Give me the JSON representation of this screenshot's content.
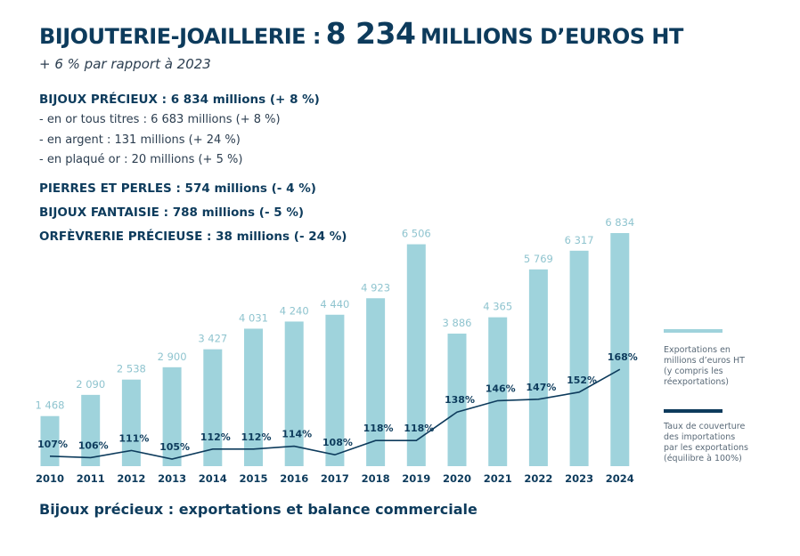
{
  "header": {
    "label": "BIJOUTERIE-JOAILLERIE :",
    "amount": "8 234",
    "unit": "MILLIONS D’EUROS HT",
    "subtitle": "+ 6 % par rapport à 2023"
  },
  "breakdown": {
    "precious": "BIJOUX PRÉCIEUX : 6 834 millions (+ 8 %)",
    "gold": "- en or tous titres : 6 683 millions (+ 8 %)",
    "silver": "- en argent : 131 millions (+ 24 %)",
    "plated": "- en plaqué or : 20 millions (+ 5 %)",
    "stones": "PIERRES ET PERLES : 574 millions (- 4 %)",
    "fantasy": "BIJOUX FANTAISIE : 788 millions (- 5 %)",
    "silverware": "ORFÈVRERIE PRÉCIEUSE : 38 millions (- 24 %)"
  },
  "colors": {
    "bar": "#9fd3dc",
    "line": "#0d3b5c",
    "bar_label": "#8fc4cf"
  },
  "chart_data": {
    "type": "bar",
    "title": "Bijoux précieux : exportations et balance commerciale",
    "categories": [
      "2010",
      "2011",
      "2012",
      "2013",
      "2014",
      "2015",
      "2016",
      "2017",
      "2018",
      "2019",
      "2020",
      "2021",
      "2022",
      "2023",
      "2024"
    ],
    "series": [
      {
        "name": "Exportations en millions d’euros HT (y compris les réexportations)",
        "type": "bar",
        "values": [
          1468,
          2090,
          2538,
          2900,
          3427,
          4031,
          4240,
          4440,
          4923,
          6506,
          3886,
          4365,
          5769,
          6317,
          6834
        ],
        "labels": [
          "1 468",
          "2 090",
          "2 538",
          "2 900",
          "3 427",
          "4 031",
          "4 240",
          "4 440",
          "4 923",
          "6 506",
          "3 886",
          "4 365",
          "5 769",
          "6 317",
          "6 834"
        ]
      },
      {
        "name": "Taux de couverture des importations par les exportations (équilibre à 100%)",
        "type": "line",
        "values": [
          107,
          106,
          111,
          105,
          112,
          112,
          114,
          108,
          118,
          118,
          138,
          146,
          147,
          152,
          168
        ],
        "labels": [
          "107%",
          "106%",
          "111%",
          "105%",
          "112%",
          "112%",
          "114%",
          "108%",
          "118%",
          "118%",
          "138%",
          "146%",
          "147%",
          "152%",
          "168%"
        ]
      }
    ],
    "ylim": [
      0,
      7000
    ],
    "legend_position": "right"
  },
  "legend": {
    "exports_line1": "Exportations en",
    "exports_line2": "millions d’euros HT",
    "exports_line3": "(y compris les",
    "exports_line4": "réexportations)",
    "coverage_line1": "Taux de couverture",
    "coverage_line2": "des importations",
    "coverage_line3": "par les exportations",
    "coverage_line4": "(équilibre à 100%)"
  }
}
